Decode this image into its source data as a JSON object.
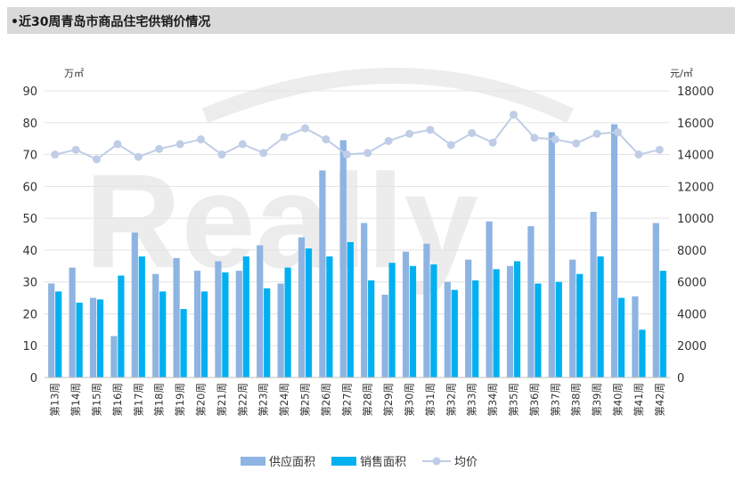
{
  "header": {
    "title": "•近30周青岛市商品住宅供销价情况"
  },
  "chart_data": {
    "type": "bar",
    "categories": [
      "第13周",
      "第14周",
      "第15周",
      "第16周",
      "第17周",
      "第18周",
      "第19周",
      "第20周",
      "第21周",
      "第22周",
      "第23周",
      "第24周",
      "第25周",
      "第26周",
      "第27周",
      "第28周",
      "第29周",
      "第30周",
      "第31周",
      "第32周",
      "第33周",
      "第34周",
      "第35周",
      "第36周",
      "第37周",
      "第38周",
      "第39周",
      "第40周",
      "第41周",
      "第42周"
    ],
    "series": [
      {
        "name": "供应面积",
        "type": "bar",
        "axis": "left",
        "color": "#8db4e2",
        "values": [
          29.5,
          34.5,
          25,
          13,
          45.5,
          32.5,
          37.5,
          33.5,
          36.5,
          33.5,
          41.5,
          29.5,
          44,
          65,
          74.5,
          48.5,
          26,
          39.5,
          42,
          30,
          37,
          49,
          35,
          47.5,
          77,
          37,
          52,
          79.5,
          25.5,
          48.5
        ]
      },
      {
        "name": "销售面积",
        "type": "bar",
        "axis": "left",
        "color": "#00b0f0",
        "values": [
          27,
          23.5,
          24.5,
          32,
          38,
          27,
          21.5,
          27,
          33,
          38,
          28,
          34.5,
          40.5,
          38,
          42.5,
          30.5,
          36,
          35,
          35.5,
          27.5,
          30.5,
          34,
          36.5,
          29.5,
          30,
          32.5,
          38,
          25,
          15,
          33.5
        ]
      },
      {
        "name": "均价",
        "type": "line",
        "axis": "right",
        "color": "#bfcde6",
        "values": [
          14000,
          14300,
          13700,
          14650,
          13850,
          14350,
          14650,
          14950,
          14000,
          14650,
          14100,
          15100,
          15650,
          14950,
          14000,
          14100,
          14850,
          15300,
          15550,
          14600,
          15350,
          14750,
          16500,
          15050,
          14950,
          14700,
          15300,
          15400,
          14000,
          14300
        ]
      }
    ],
    "y_left": {
      "unit": "万㎡",
      "min": 0,
      "max": 90,
      "ticks": [
        "0",
        "10",
        "20",
        "30",
        "40",
        "50",
        "60",
        "70",
        "80",
        "90"
      ]
    },
    "y_right": {
      "unit": "元/㎡",
      "min": 0,
      "max": 18000,
      "ticks": [
        "0",
        "2000",
        "4000",
        "6000",
        "8000",
        "10000",
        "12000",
        "14000",
        "16000",
        "18000"
      ]
    },
    "legend": {
      "position": "bottom"
    },
    "grid": true,
    "watermark": "Really 睿信 数据"
  }
}
